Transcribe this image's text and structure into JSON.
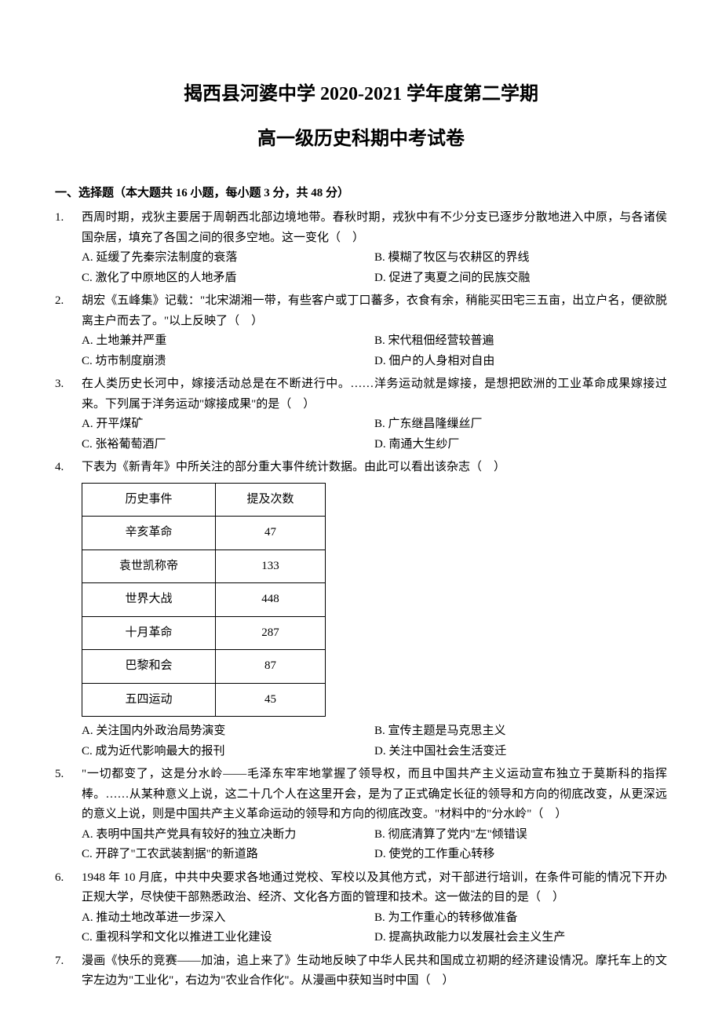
{
  "title": {
    "main": "揭西县河婆中学 2020-2021 学年度第二学期",
    "sub": "高一级历史科期中考试卷"
  },
  "section_header": "一、选择题（本大题共 16 小题，每小题 3 分，共 48 分）",
  "questions": [
    {
      "num": "1.",
      "text": "西周时期，戎狄主要居于周朝西北部边境地带。春秋时期，戎狄中有不少分支已逐步分散地进入中原，与各诸侯国杂居，填充了各国之间的很多空地。这一变化（　）",
      "options": [
        [
          "A. 延缓了先秦宗法制度的衰落",
          "B. 模糊了牧区与农耕区的界线"
        ],
        [
          "C. 激化了中原地区的人地矛盾",
          "D. 促进了夷夏之间的民族交融"
        ]
      ]
    },
    {
      "num": "2.",
      "text": "胡宏《五峰集》记载：\"北宋湖湘一带，有些客户或丁口蕃多，衣食有余，稍能买田宅三五亩，出立户名，便欲脱离主户而去了。\"以上反映了（　）",
      "options": [
        [
          "A. 土地兼并严重",
          "B. 宋代租佃经营较普遍"
        ],
        [
          "C. 坊市制度崩溃",
          "D. 佃户的人身相对自由"
        ]
      ]
    },
    {
      "num": "3.",
      "text": "在人类历史长河中，嫁接活动总是在不断进行中。……洋务运动就是嫁接，是想把欧洲的工业革命成果嫁接过来。下列属于洋务运动\"嫁接成果\"的是（　）",
      "options": [
        [
          "A. 开平煤矿",
          "B. 广东继昌隆缫丝厂"
        ],
        [
          "C. 张裕葡萄酒厂",
          "D. 南通大生纱厂"
        ]
      ]
    },
    {
      "num": "4.",
      "text": "下表为《新青年》中所关注的部分重大事件统计数据。由此可以看出该杂志（　）",
      "table": {
        "columns": [
          "历史事件",
          "提及次数"
        ],
        "rows": [
          [
            "辛亥革命",
            "47"
          ],
          [
            "袁世凯称帝",
            "133"
          ],
          [
            "世界大战",
            "448"
          ],
          [
            "十月革命",
            "287"
          ],
          [
            "巴黎和会",
            "87"
          ],
          [
            "五四运动",
            "45"
          ]
        ]
      },
      "options": [
        [
          "A. 关注国内外政治局势演变",
          "B. 宣传主题是马克思主义"
        ],
        [
          "C. 成为近代影响最大的报刊",
          "D. 关注中国社会生活变迁"
        ]
      ]
    },
    {
      "num": "5.",
      "text": "\"一切都变了，这是分水岭——毛泽东牢牢地掌握了领导权，而且中国共产主义运动宣布独立于莫斯科的指挥棒。……从某种意义上说，这二十几个人在这里开会，是为了正式确定长征的领导和方向的彻底改变，从更深远的意义上说，则是中国共产主义革命运动的领导和方向的彻底改变。\"材料中的\"分水岭\"（　）",
      "options": [
        [
          "A. 表明中国共产党具有较好的独立决断力",
          "B. 彻底清算了党内\"左\"倾错误"
        ],
        [
          "C. 开辟了\"工农武装割据\"的新道路",
          "D. 使党的工作重心转移"
        ]
      ]
    },
    {
      "num": "6.",
      "text": "1948 年 10 月底，中共中央要求各地通过党校、军校以及其他方式，对干部进行培训，在条件可能的情况下开办正规大学，尽快使干部熟悉政治、经济、文化各方面的管理和技术。这一做法的目的是（　）",
      "options": [
        [
          "A. 推动土地改革进一步深入",
          "B. 为工作重心的转移做准备"
        ],
        [
          "C. 重视科学和文化以推进工业化建设",
          "D. 提高执政能力以发展社会主义生产"
        ]
      ]
    },
    {
      "num": "7.",
      "text": "漫画《快乐的竞赛——加油，追上来了》生动地反映了中华人民共和国成立初期的经济建设情况。摩托车上的文字左边为\"工业化\"，右边为\"农业合作化\"。从漫画中获知当时中国（　）",
      "options": []
    }
  ]
}
